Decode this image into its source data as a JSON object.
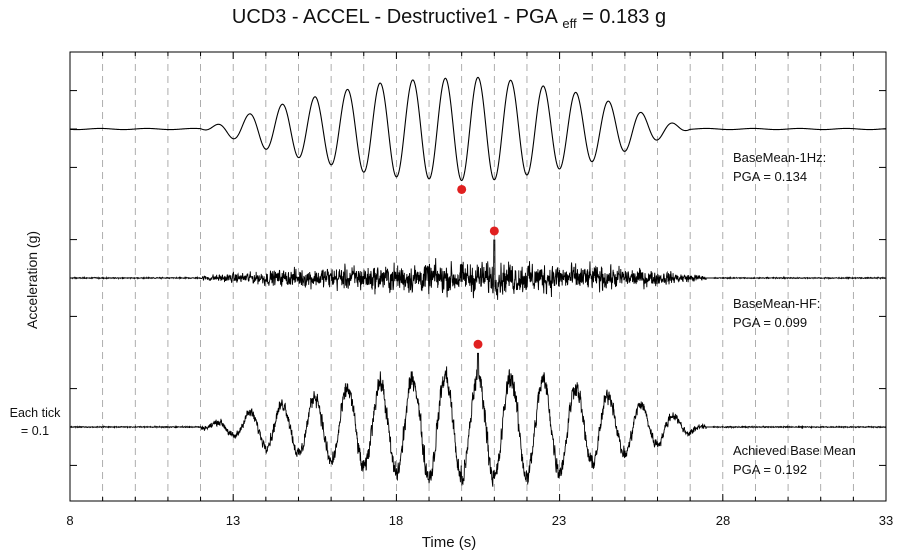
{
  "chart_data": {
    "type": "line",
    "title_main": "UCD3 - ACCEL - Destructive1 - PGA",
    "title_sub": "eff",
    "title_tail": "= 0.183 g",
    "xlabel": "Time (s)",
    "ylabel": "Acceleration (g)",
    "xlim": [
      8,
      33
    ],
    "x_ticks": [
      "8",
      "13",
      "18",
      "23",
      "28",
      "33"
    ],
    "y_tick_note_line1": "Each tick",
    "y_tick_note_line2": "= 0.1",
    "vertical_grid": "dashed, every 1 s",
    "series": [
      {
        "name": "BaseMean-1Hz:",
        "pga_label": "PGA = 0.134",
        "pga": 0.134,
        "pga_time": 20.0,
        "pga_sign": -1,
        "active_range": [
          12.0,
          27.0
        ],
        "dominant_freq_hz": 1.0
      },
      {
        "name": "BaseMean-HF:",
        "pga_label": "PGA = 0.099",
        "pga": 0.099,
        "pga_time": 21.0,
        "pga_sign": 1,
        "active_range": [
          12.0,
          27.5
        ],
        "dominant_freq_hz": "high"
      },
      {
        "name": "Achieved Base Mean",
        "pga_label": "PGA = 0.192",
        "pga": 0.192,
        "pga_time": 20.5,
        "pga_sign": 1,
        "active_range": [
          12.0,
          27.5
        ],
        "dominant_freq_hz": 1.0
      }
    ],
    "pga_marker_color": "#e02020",
    "trace_color": "#000000"
  }
}
